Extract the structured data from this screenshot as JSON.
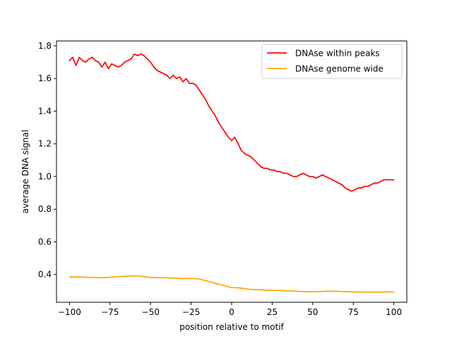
{
  "chart_data": {
    "type": "line",
    "xlabel": "position relative to motif",
    "ylabel": "average DNA signal",
    "xlim": [
      -108,
      108
    ],
    "ylim": [
      0.23,
      1.83
    ],
    "xticks": [
      -100,
      -75,
      -50,
      -25,
      0,
      25,
      50,
      75,
      100
    ],
    "xtick_labels": [
      "−100",
      "−75",
      "−50",
      "−25",
      "0",
      "25",
      "50",
      "75",
      "100"
    ],
    "yticks": [
      0.4,
      0.6,
      0.8,
      1.0,
      1.2,
      1.4,
      1.6,
      1.8
    ],
    "ytick_labels": [
      "0.4",
      "0.6",
      "0.8",
      "1.0",
      "1.2",
      "1.4",
      "1.6",
      "1.8"
    ],
    "grid": false,
    "legend_position": "top-right",
    "series": [
      {
        "name": "DNAse within peaks",
        "color": "#ff0000",
        "x": [
          -100,
          -98,
          -96,
          -94,
          -92,
          -90,
          -88,
          -86,
          -84,
          -82,
          -80,
          -78,
          -76,
          -74,
          -72,
          -70,
          -68,
          -66,
          -64,
          -62,
          -60,
          -58,
          -56,
          -54,
          -52,
          -50,
          -48,
          -46,
          -44,
          -42,
          -40,
          -38,
          -36,
          -34,
          -32,
          -30,
          -28,
          -26,
          -24,
          -22,
          -20,
          -18,
          -16,
          -14,
          -12,
          -10,
          -8,
          -6,
          -4,
          -2,
          0,
          2,
          4,
          6,
          8,
          10,
          12,
          14,
          16,
          18,
          20,
          22,
          24,
          26,
          28,
          30,
          32,
          34,
          36,
          38,
          40,
          42,
          44,
          46,
          48,
          50,
          52,
          54,
          56,
          58,
          60,
          62,
          64,
          66,
          68,
          70,
          72,
          74,
          76,
          78,
          80,
          82,
          84,
          86,
          88,
          90,
          92,
          94,
          96,
          98,
          100
        ],
        "y": [
          1.71,
          1.73,
          1.68,
          1.73,
          1.71,
          1.7,
          1.72,
          1.73,
          1.71,
          1.7,
          1.67,
          1.7,
          1.66,
          1.69,
          1.68,
          1.67,
          1.68,
          1.7,
          1.71,
          1.72,
          1.75,
          1.74,
          1.75,
          1.74,
          1.72,
          1.7,
          1.67,
          1.65,
          1.64,
          1.63,
          1.62,
          1.6,
          1.62,
          1.6,
          1.61,
          1.58,
          1.6,
          1.57,
          1.57,
          1.56,
          1.53,
          1.5,
          1.47,
          1.43,
          1.4,
          1.37,
          1.33,
          1.3,
          1.27,
          1.24,
          1.22,
          1.24,
          1.2,
          1.16,
          1.14,
          1.13,
          1.12,
          1.1,
          1.08,
          1.06,
          1.05,
          1.05,
          1.04,
          1.04,
          1.03,
          1.03,
          1.02,
          1.02,
          1.01,
          1.0,
          1.0,
          1.01,
          1.02,
          1.01,
          1.0,
          1.0,
          0.99,
          1.0,
          1.01,
          1.0,
          0.99,
          0.98,
          0.97,
          0.96,
          0.95,
          0.93,
          0.92,
          0.91,
          0.92,
          0.93,
          0.93,
          0.94,
          0.94,
          0.95,
          0.96,
          0.96,
          0.97,
          0.98,
          0.98,
          0.98,
          0.98
        ]
      },
      {
        "name": "DNAse genome wide",
        "color": "#ffa500",
        "x": [
          -100,
          -95,
          -90,
          -85,
          -80,
          -75,
          -70,
          -65,
          -60,
          -55,
          -50,
          -45,
          -40,
          -35,
          -30,
          -25,
          -20,
          -15,
          -10,
          -5,
          0,
          5,
          10,
          15,
          20,
          25,
          30,
          35,
          40,
          45,
          50,
          55,
          60,
          65,
          70,
          75,
          80,
          85,
          90,
          95,
          100
        ],
        "y": [
          0.385,
          0.385,
          0.383,
          0.382,
          0.38,
          0.383,
          0.387,
          0.39,
          0.392,
          0.388,
          0.382,
          0.38,
          0.38,
          0.377,
          0.375,
          0.376,
          0.373,
          0.36,
          0.345,
          0.333,
          0.32,
          0.318,
          0.31,
          0.307,
          0.305,
          0.303,
          0.302,
          0.3,
          0.297,
          0.295,
          0.295,
          0.296,
          0.298,
          0.297,
          0.295,
          0.293,
          0.292,
          0.292,
          0.292,
          0.293,
          0.294
        ]
      }
    ]
  }
}
